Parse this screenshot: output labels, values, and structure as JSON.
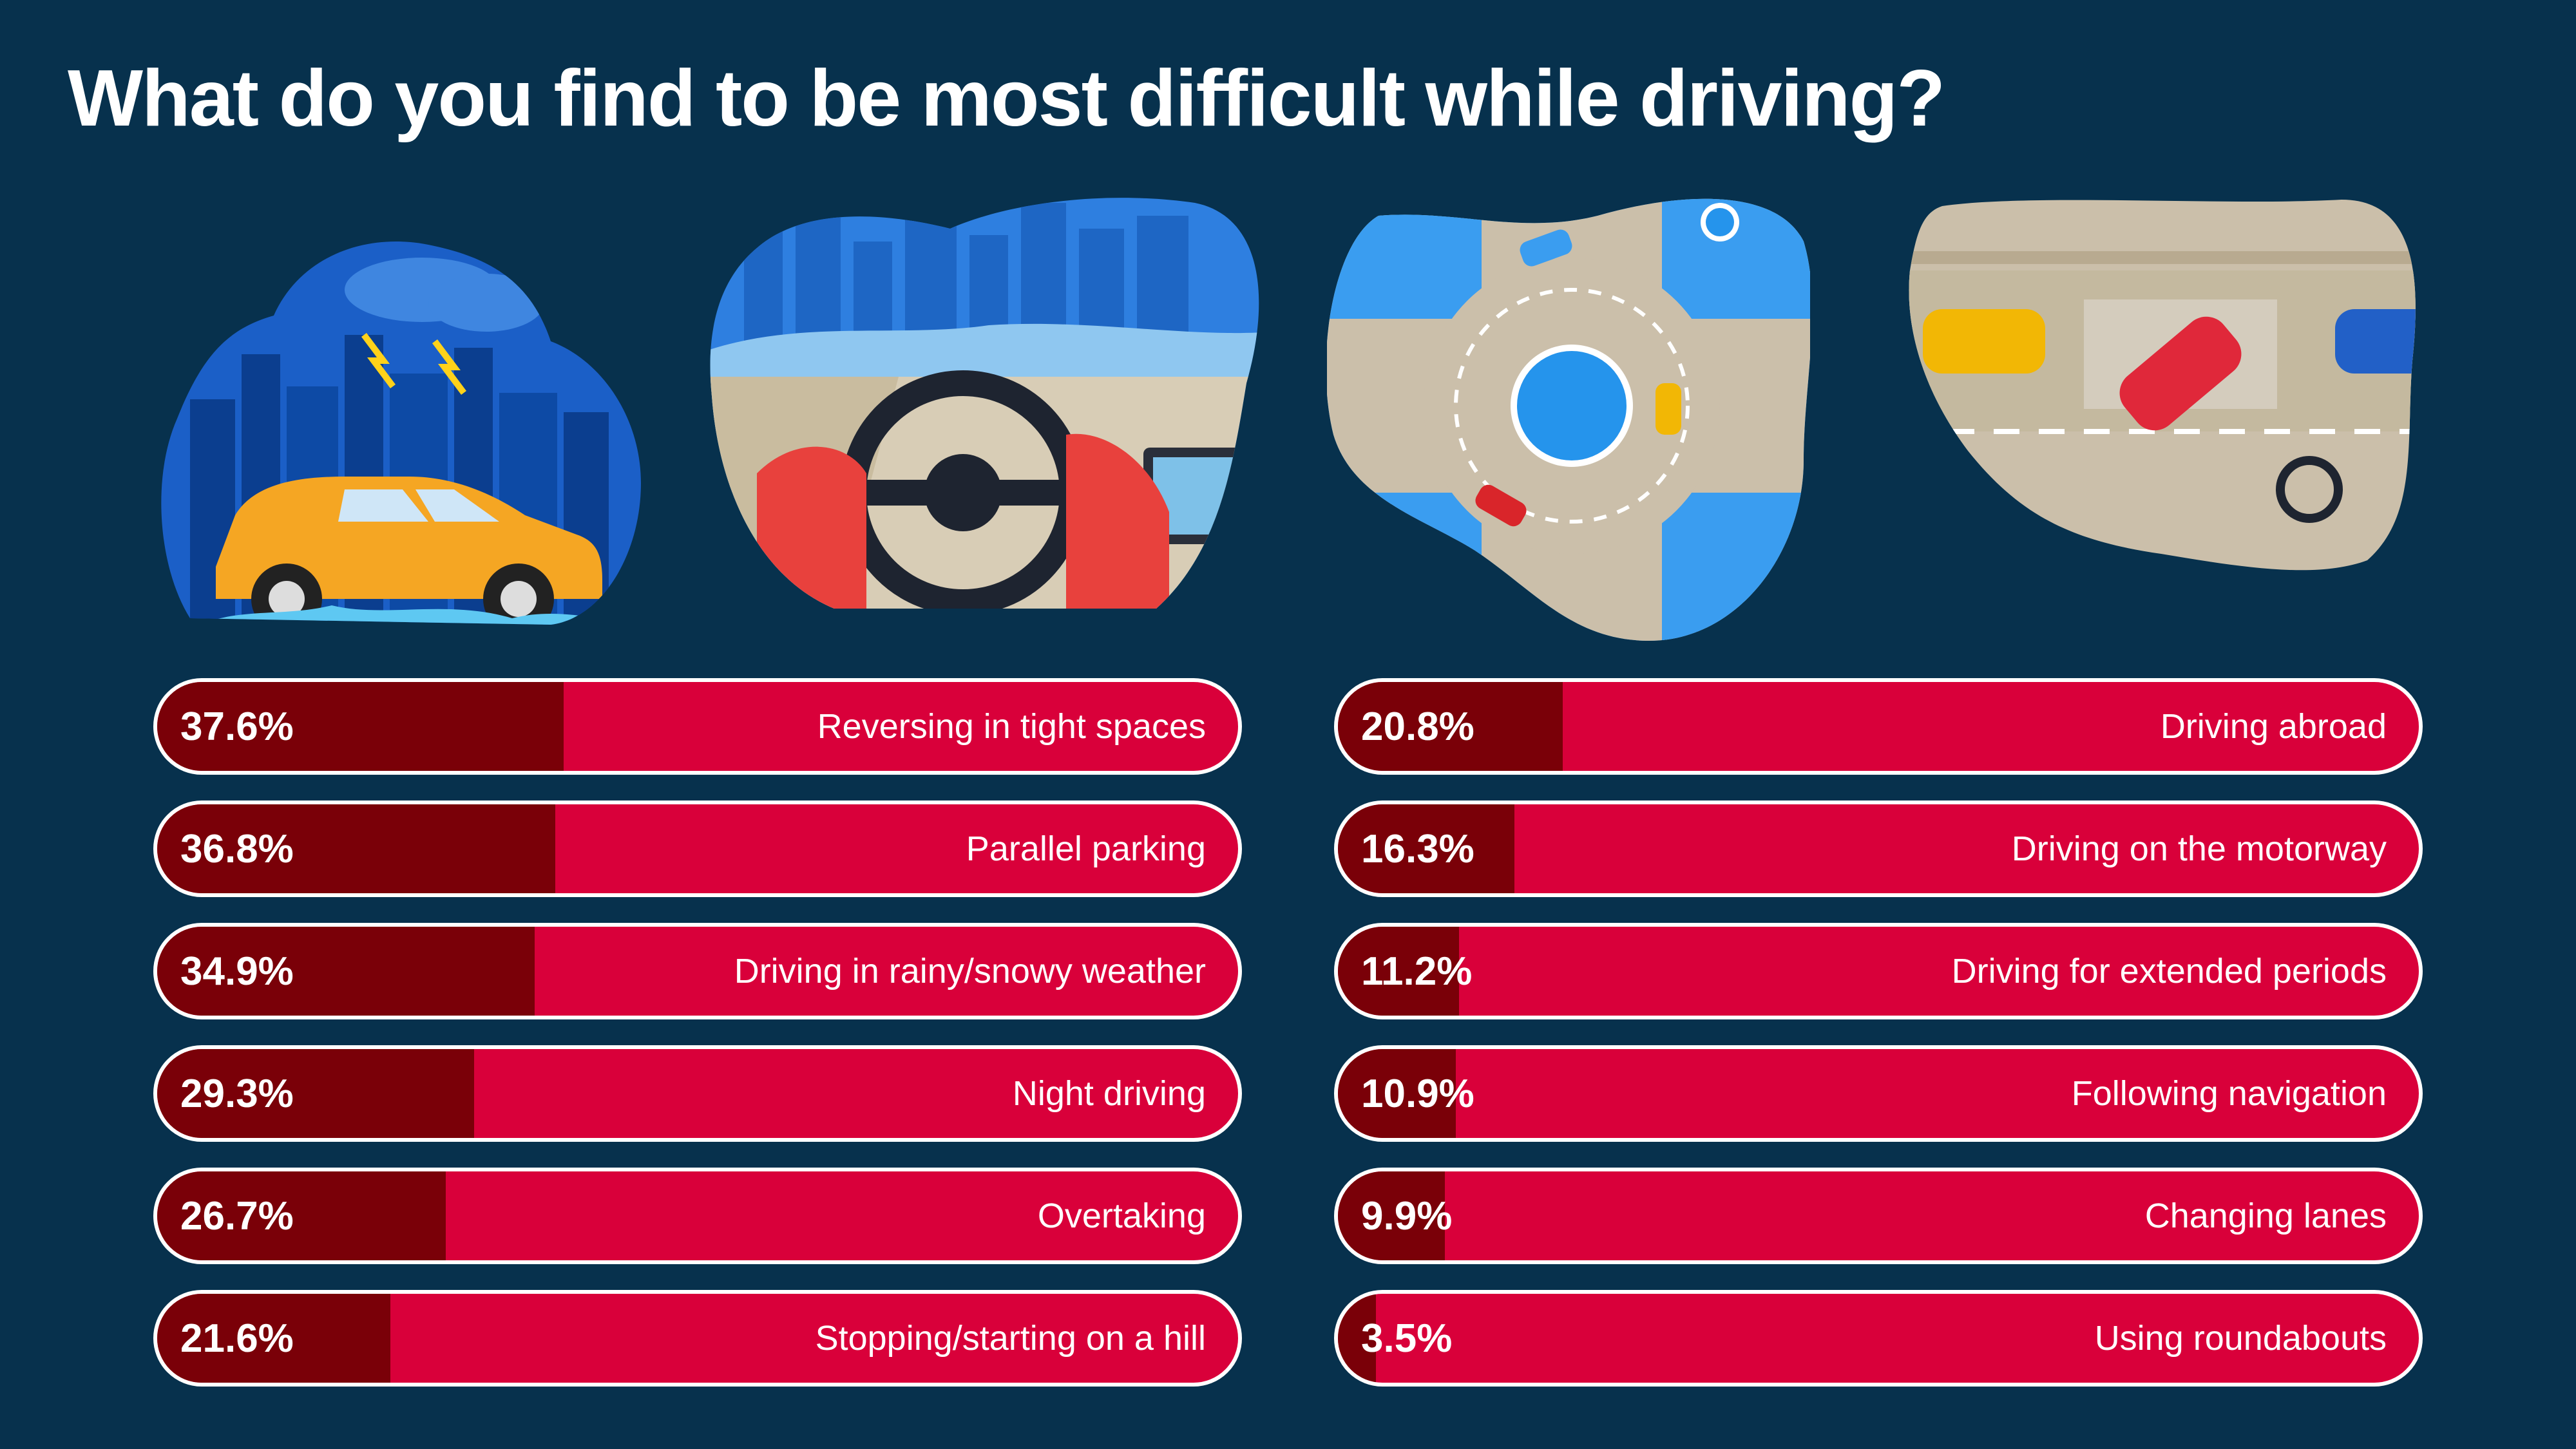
{
  "title": "What do you find to be most difficult while driving?",
  "colors": {
    "background": "#07314d",
    "bar": "#d9003a",
    "bar_fill": "#7a0008",
    "bar_border": "#ffffff",
    "text": "#ffffff"
  },
  "illustrations": [
    {
      "name": "car-in-rain-illustration"
    },
    {
      "name": "steering-wheel-illustration"
    },
    {
      "name": "roundabout-illustration"
    },
    {
      "name": "parallel-parking-illustration"
    }
  ],
  "chart_data": {
    "type": "bar",
    "orientation": "horizontal",
    "title": "What do you find to be most difficult while driving?",
    "xlim": [
      0,
      100
    ],
    "grid": false,
    "categories": [
      "Reversing in tight spaces",
      "Parallel parking",
      "Driving in rainy/snowy weather",
      "Night driving",
      "Overtaking",
      "Stopping/starting on a hill",
      "Driving abroad",
      "Driving on the motorway",
      "Driving for extended periods",
      "Following navigation",
      "Changing lanes",
      "Using roundabouts"
    ],
    "values": [
      37.6,
      36.8,
      34.9,
      29.3,
      26.7,
      21.6,
      20.8,
      16.3,
      11.2,
      10.9,
      9.9,
      3.5
    ],
    "labels": [
      "37.6%",
      "36.8%",
      "34.9%",
      "29.3%",
      "26.7%",
      "21.6%",
      "20.8%",
      "16.3%",
      "11.2%",
      "10.9%",
      "9.9%",
      "3.5%"
    ]
  }
}
